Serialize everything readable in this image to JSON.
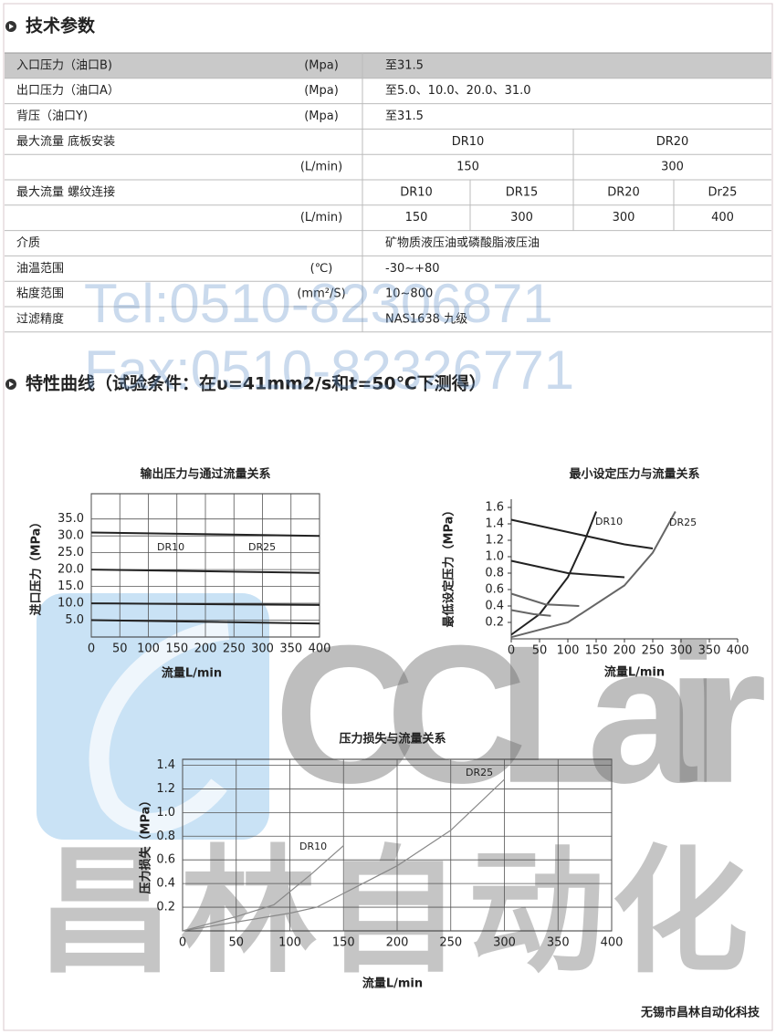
{
  "header": {
    "title": "技术参数"
  },
  "table": {
    "rows": [
      {
        "label": "入口压力（油口B)",
        "unit": "(Mpa)",
        "cells": [
          "至31.5"
        ]
      },
      {
        "label": "出口压力（油口A）",
        "unit": "(Mpa)",
        "cells": [
          "至5.0、10.0、20.0、31.0"
        ]
      },
      {
        "label": "背压（油口Y)",
        "unit": "(Mpa)",
        "cells": [
          "至31.5"
        ]
      },
      {
        "label": "最大流量 底板安装",
        "cells": [
          "DR10",
          "DR20"
        ]
      },
      {
        "unit": "(L/min)",
        "cells": [
          "150",
          "300"
        ]
      },
      {
        "label": "最大流量 螺纹连接",
        "cells": [
          "DR10",
          "DR15",
          "DR20",
          "Dr25"
        ]
      },
      {
        "unit": "(L/min)",
        "cells": [
          "150",
          "300",
          "300",
          "400"
        ]
      },
      {
        "label": "介质",
        "cells": [
          "矿物质液压油或磷酸脂液压油"
        ]
      },
      {
        "label": "油温范围",
        "unit": "(℃)",
        "cells": [
          "-30~+80"
        ]
      },
      {
        "label": "粘度范围",
        "unit": "(mm²/S)",
        "cells": [
          "10~800"
        ]
      },
      {
        "label": "过滤精度",
        "cells": [
          "NAS1638 九级"
        ]
      }
    ]
  },
  "curves_title": "特性曲线（试验条件：在υ=41mm2/s和t=50℃下测得）",
  "watermark": {
    "tel": "Tel:0510-82306871",
    "fax": "Fax:0510-82326771",
    "logo": "CCLair",
    "logo_cn": "昌林自动化"
  },
  "footer": "无锡市昌林自动化科技",
  "chart_data": [
    {
      "type": "line",
      "title": "输出压力与通过流量关系",
      "y_label": "进口压力（MPa）",
      "x_label": "流量L/min",
      "xlim": [
        0,
        400
      ],
      "xticks": [
        0,
        50,
        100,
        150,
        200,
        250,
        300,
        350,
        400
      ],
      "ylim": [
        0,
        42.5
      ],
      "yticks": [
        {
          "value": 5,
          "label": "5.0"
        },
        {
          "value": 10,
          "label": "10.0"
        },
        {
          "value": 15,
          "label": "15.0"
        },
        {
          "value": 20,
          "label": "20.0"
        },
        {
          "value": 25,
          "label": "25.0"
        },
        {
          "value": 30,
          "label": "30.0"
        },
        {
          "value": 35,
          "label": "35.0"
        }
      ],
      "grid": true,
      "annotations": [
        "DR10",
        "DR25"
      ],
      "series": [
        {
          "color": "#222222",
          "x": [
            0,
            400
          ],
          "values": [
            31,
            30
          ]
        },
        {
          "color": "#222222",
          "x": [
            0,
            400
          ],
          "values": [
            20,
            19
          ]
        },
        {
          "color": "#222222",
          "x": [
            0,
            400
          ],
          "values": [
            10,
            9.5
          ]
        },
        {
          "color": "#222222",
          "x": [
            0,
            400
          ],
          "values": [
            5,
            4
          ]
        }
      ]
    },
    {
      "type": "line",
      "title": "最小设定压力与流量关系",
      "y_label": "最低设定压力（MPa）",
      "x_label": "流量L/min",
      "xlim": [
        0,
        400
      ],
      "xticks": [
        0,
        50,
        100,
        150,
        200,
        250,
        300,
        350,
        400
      ],
      "ylim": [
        0,
        1.7
      ],
      "yticks": [
        0.2,
        0.4,
        0.6,
        0.8,
        {
          "value": 1,
          "label": "1.0"
        },
        1.2,
        1.4,
        1.6
      ],
      "grid": false,
      "annotations": [
        "DR10",
        "DR25"
      ],
      "series": [
        {
          "color": "#222222",
          "x": [
            0,
            50,
            100,
            130,
            150
          ],
          "values": [
            0.05,
            0.3,
            0.75,
            1.2,
            1.55
          ]
        },
        {
          "color": "#666666",
          "x": [
            0,
            100,
            200,
            250,
            290
          ],
          "values": [
            0.02,
            0.2,
            0.65,
            1.05,
            1.55
          ]
        },
        {
          "color": "#222222",
          "x": [
            0,
            100,
            200,
            250
          ],
          "values": [
            1.45,
            1.3,
            1.15,
            1.1
          ]
        },
        {
          "color": "#222222",
          "x": [
            0,
            100,
            200
          ],
          "values": [
            0.95,
            0.8,
            0.75
          ]
        },
        {
          "color": "#666666",
          "x": [
            0,
            60,
            120
          ],
          "values": [
            0.55,
            0.42,
            0.4
          ]
        },
        {
          "color": "#666666",
          "x": [
            0,
            40,
            70
          ],
          "values": [
            0.35,
            0.3,
            0.28
          ]
        }
      ]
    },
    {
      "type": "line",
      "title": "压力损失与流量关系",
      "y_label": "压力损失（MPa）",
      "x_label": "流量L/min",
      "xlim": [
        0,
        400
      ],
      "xticks": [
        0,
        50,
        100,
        150,
        200,
        250,
        300,
        350,
        400
      ],
      "ylim": [
        0,
        1.45
      ],
      "yticks": [
        0.2,
        0.4,
        0.6,
        0.8,
        {
          "value": 1,
          "label": "1.0"
        },
        1.2,
        1.4
      ],
      "grid": true,
      "annotations": [
        "DR10",
        "DR25"
      ],
      "series": [
        {
          "color": "#888888",
          "x": [
            0,
            50,
            85,
            120,
            150
          ],
          "values": [
            0,
            0.12,
            0.22,
            0.48,
            0.72
          ]
        },
        {
          "color": "#888888",
          "x": [
            0,
            100,
            125,
            200,
            250,
            300
          ],
          "values": [
            0,
            0.15,
            0.2,
            0.55,
            0.85,
            1.28
          ]
        }
      ]
    }
  ]
}
